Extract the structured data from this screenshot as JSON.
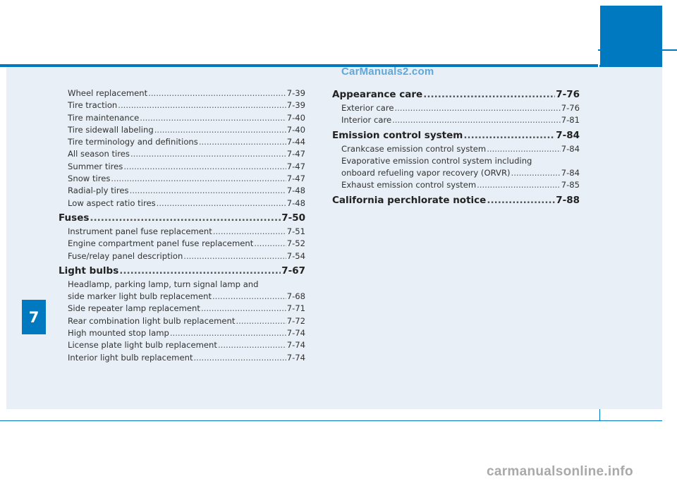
{
  "chapter_number": "7",
  "watermark": "CarManuals2.com",
  "footer_watermark": "carmanualsonline.info",
  "left_column": [
    {
      "type": "sub",
      "label": "Wheel replacement",
      "page": "7-39"
    },
    {
      "type": "sub",
      "label": "Tire traction",
      "page": "7-39"
    },
    {
      "type": "sub",
      "label": "Tire maintenance",
      "page": "7-40"
    },
    {
      "type": "sub",
      "label": "Tire sidewall labeling",
      "page": "7-40"
    },
    {
      "type": "sub",
      "label": "Tire terminology and definitions",
      "page": "7-44"
    },
    {
      "type": "sub",
      "label": "All season tires",
      "page": "7-47"
    },
    {
      "type": "sub",
      "label": "Summer tires",
      "page": "7-47"
    },
    {
      "type": "sub",
      "label": "Snow tires",
      "page": "7-47"
    },
    {
      "type": "sub",
      "label": "Radial-ply tires",
      "page": "7-48"
    },
    {
      "type": "sub",
      "label": "Low aspect ratio tires",
      "page": "7-48"
    },
    {
      "type": "main",
      "label": "Fuses",
      "page": "7-50"
    },
    {
      "type": "sub",
      "label": "Instrument panel fuse replacement",
      "page": "7-51"
    },
    {
      "type": "sub",
      "label": "Engine compartment panel fuse replacement",
      "page": "7-52"
    },
    {
      "type": "sub",
      "label": "Fuse/relay panel description",
      "page": "7-54"
    },
    {
      "type": "main",
      "label": "Light bulbs",
      "page": "7-67"
    },
    {
      "type": "sub-line",
      "label": "Headlamp, parking lamp, turn signal lamp and"
    },
    {
      "type": "sub",
      "label": "side marker light bulb replacement",
      "page": "7-68"
    },
    {
      "type": "sub",
      "label": "Side repeater lamp replacement",
      "page": "7-71"
    },
    {
      "type": "sub",
      "label": "Rear combination light bulb replacement",
      "page": "7-72"
    },
    {
      "type": "sub",
      "label": "High mounted stop lamp",
      "page": "7-74"
    },
    {
      "type": "sub",
      "label": "License plate light bulb replacement",
      "page": "7-74"
    },
    {
      "type": "sub",
      "label": "Interior light bulb replacement",
      "page": "7-74"
    }
  ],
  "right_column": [
    {
      "type": "main",
      "label": "Appearance care",
      "page": "7-76"
    },
    {
      "type": "sub",
      "label": "Exterior care",
      "page": "7-76"
    },
    {
      "type": "sub",
      "label": "Interior care",
      "page": "7-81"
    },
    {
      "type": "main",
      "label": "Emission control system",
      "page": "7-84"
    },
    {
      "type": "sub",
      "label": "Crankcase emission control system",
      "page": "7-84"
    },
    {
      "type": "sub-line",
      "label": "Evaporative emission control system including"
    },
    {
      "type": "sub",
      "label": "onboard refueling vapor recovery (ORVR)",
      "page": "7-84"
    },
    {
      "type": "sub",
      "label": "Exhaust emission control system",
      "page": "7-85"
    },
    {
      "type": "main",
      "label": "California perchlorate notice",
      "page": "7-88"
    }
  ],
  "colors": {
    "accent": "#0079c1",
    "panel": "#e8eff6"
  }
}
